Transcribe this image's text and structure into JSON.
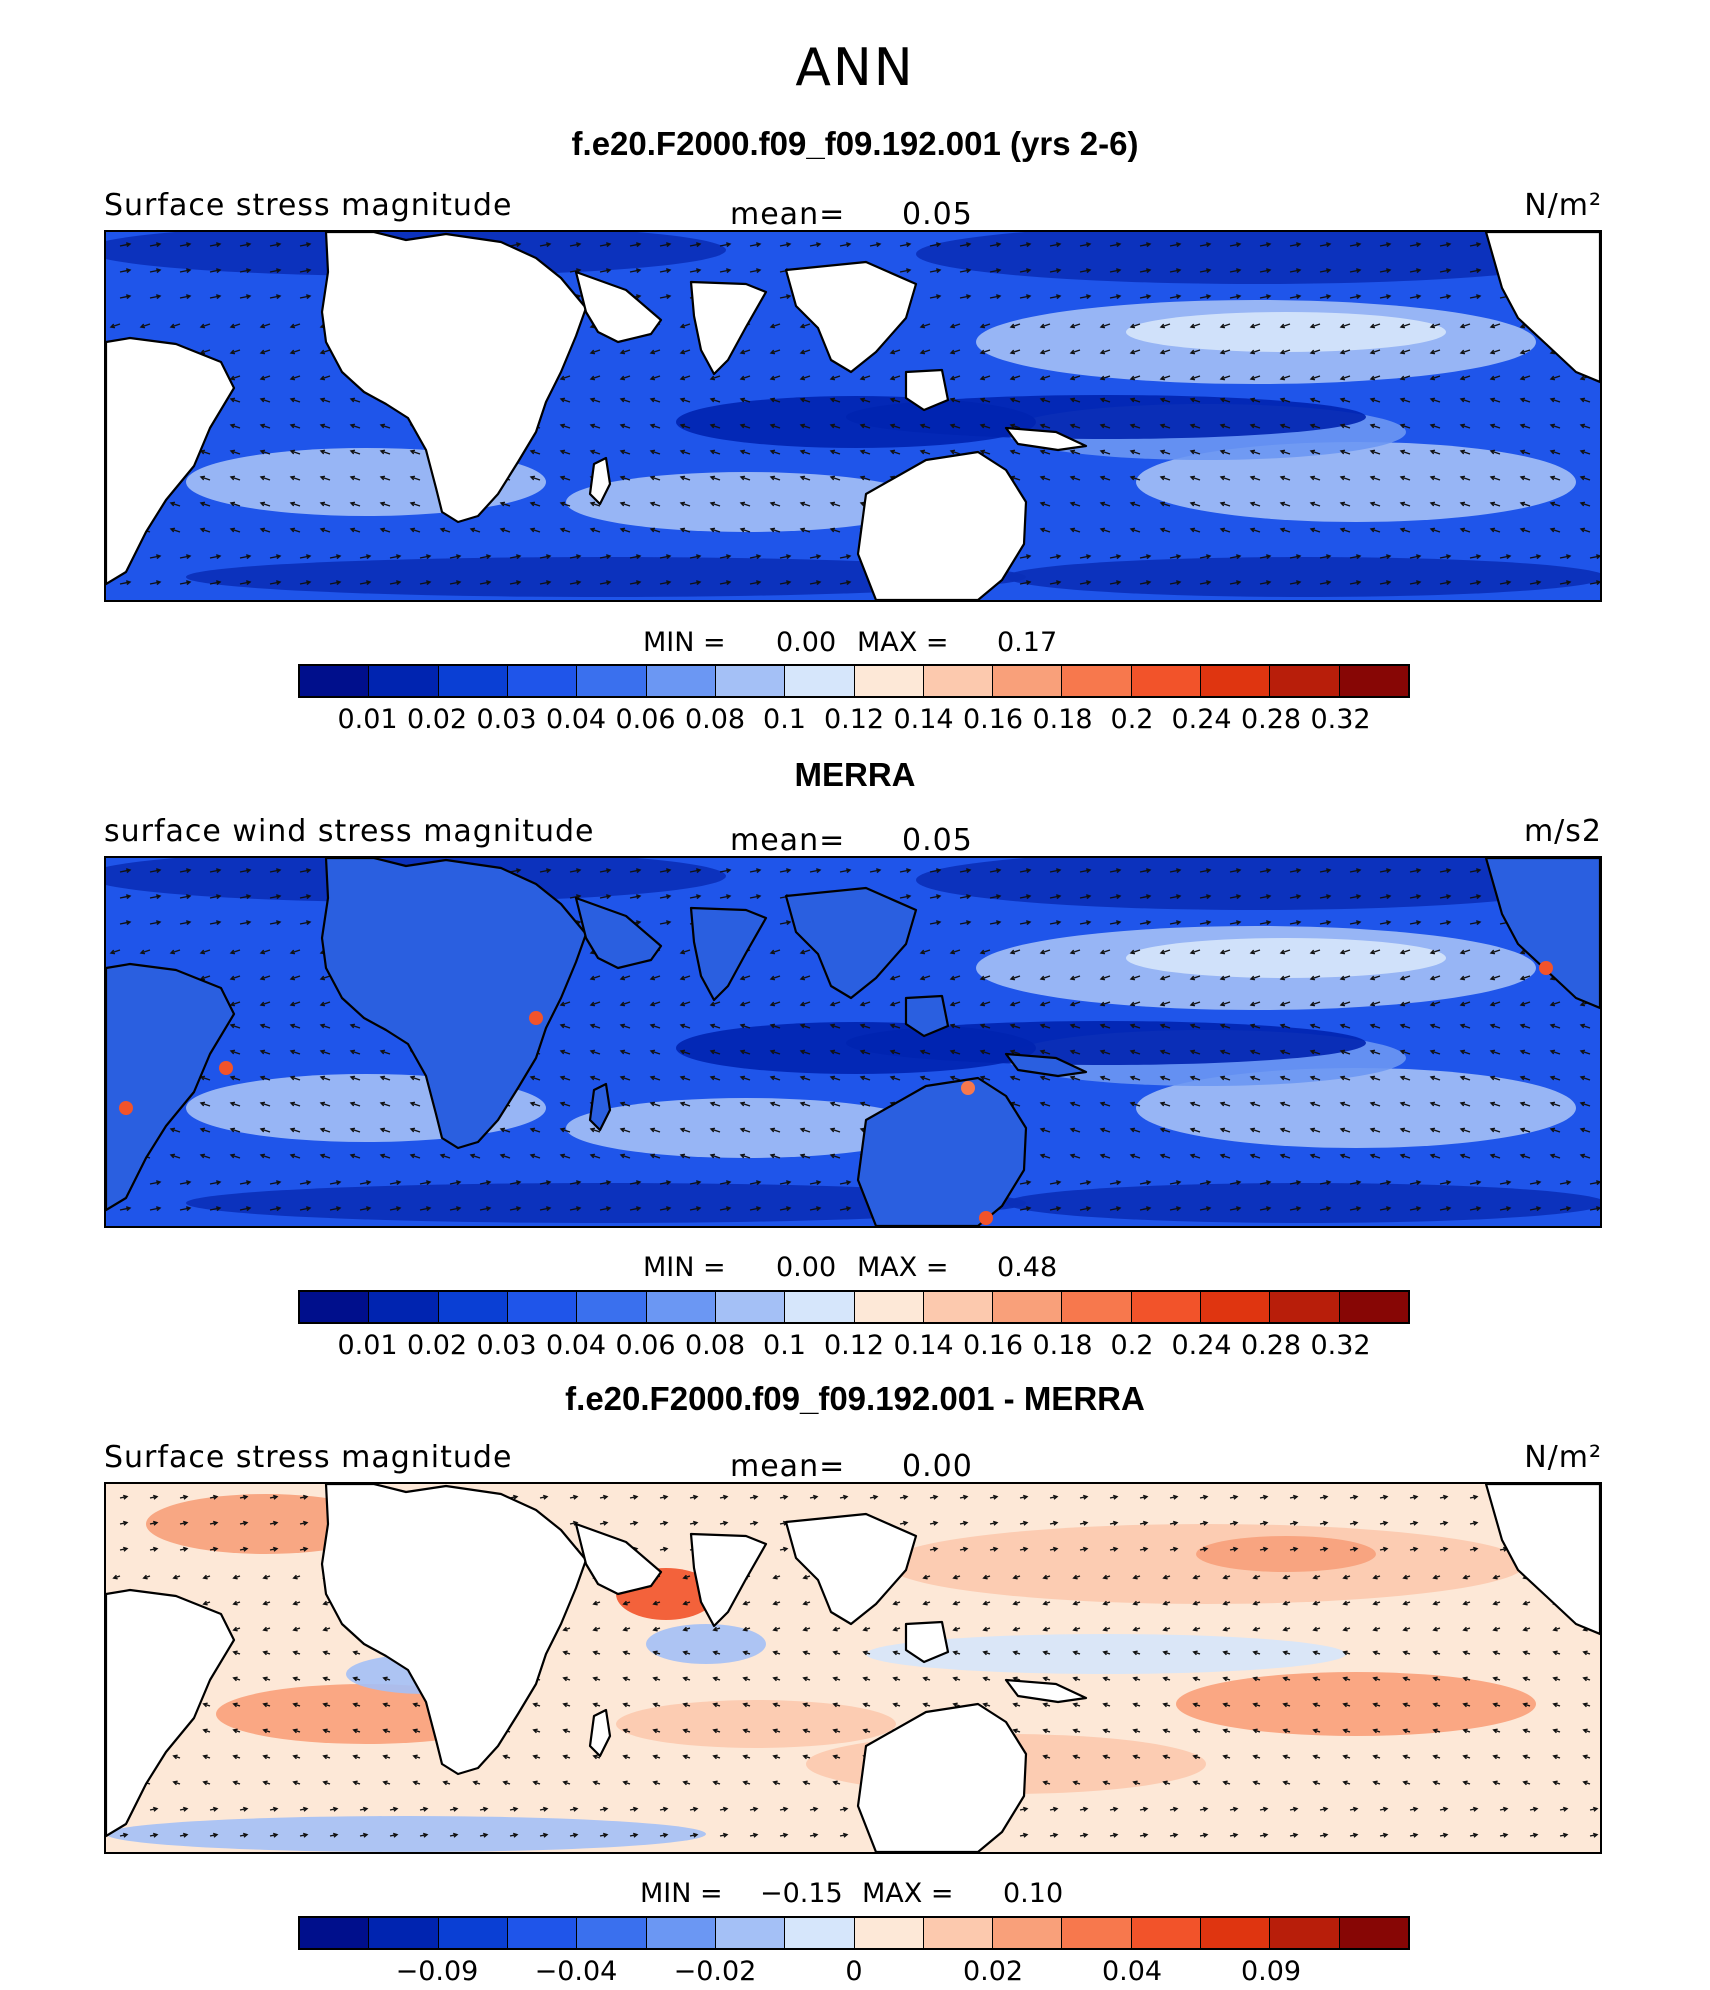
{
  "figure_title": "ANN",
  "colors": {
    "land": "#ffffff",
    "coast": "#000000",
    "arrow": "#111111"
  },
  "panels": [
    {
      "title": "f.e20.F2000.f09_f09.192.001 (yrs 2-6)",
      "left_label": "Surface stress magnitude",
      "mean_label": "mean=",
      "mean_value": "0.05",
      "units": "N/m²",
      "min_label": "MIN =",
      "min_value": "0.00",
      "max_label": "MAX =",
      "max_value": "0.17",
      "field": "model",
      "colorbar": {
        "colors": [
          "#000f8c",
          "#0024b0",
          "#0a3fd4",
          "#1f55ea",
          "#3a70ee",
          "#6b97f3",
          "#a4c0f6",
          "#d6e6fb",
          "#fde8d7",
          "#fcc9ae",
          "#f9a07a",
          "#f7784d",
          "#f2532a",
          "#df3510",
          "#b81e0a",
          "#870605"
        ],
        "ticks": [
          "0.01",
          "0.02",
          "0.03",
          "0.04",
          "0.06",
          "0.08",
          "0.1",
          "0.12",
          "0.14",
          "0.16",
          "0.18",
          "0.2",
          "0.24",
          "0.28",
          "0.32"
        ]
      }
    },
    {
      "title": "MERRA",
      "left_label": "surface wind stress magnitude",
      "mean_label": "mean=",
      "mean_value": "0.05",
      "units": "m/s2",
      "min_label": "MIN =",
      "min_value": "0.00",
      "max_label": "MAX =",
      "max_value": "0.48",
      "field": "obs",
      "colorbar": {
        "colors": [
          "#000f8c",
          "#0024b0",
          "#0a3fd4",
          "#1f55ea",
          "#3a70ee",
          "#6b97f3",
          "#a4c0f6",
          "#d6e6fb",
          "#fde8d7",
          "#fcc9ae",
          "#f9a07a",
          "#f7784d",
          "#f2532a",
          "#df3510",
          "#b81e0a",
          "#870605"
        ],
        "ticks": [
          "0.01",
          "0.02",
          "0.03",
          "0.04",
          "0.06",
          "0.08",
          "0.1",
          "0.12",
          "0.14",
          "0.16",
          "0.18",
          "0.2",
          "0.24",
          "0.28",
          "0.32"
        ]
      }
    },
    {
      "title": "f.e20.F2000.f09_f09.192.001 - MERRA",
      "left_label": "Surface stress magnitude",
      "mean_label": "mean=",
      "mean_value": "0.00",
      "units": "N/m²",
      "min_label": "MIN =",
      "min_value": "−0.15",
      "max_label": "MAX =",
      "max_value": "0.10",
      "field": "diff",
      "colorbar": {
        "colors": [
          "#000f8c",
          "#0024b0",
          "#0a3fd4",
          "#1f55ea",
          "#3a70ee",
          "#6b97f3",
          "#a4c0f6",
          "#d6e6fb",
          "#fde8d7",
          "#fcc9ae",
          "#f9a07a",
          "#f7784d",
          "#f2532a",
          "#df3510",
          "#b81e0a",
          "#870605"
        ],
        "ticks": [
          "",
          "−0.09",
          "",
          "−0.04",
          "",
          "−0.02",
          "",
          "0",
          "",
          "0.02",
          "",
          "0.04",
          "",
          "0.09",
          ""
        ]
      }
    }
  ]
}
